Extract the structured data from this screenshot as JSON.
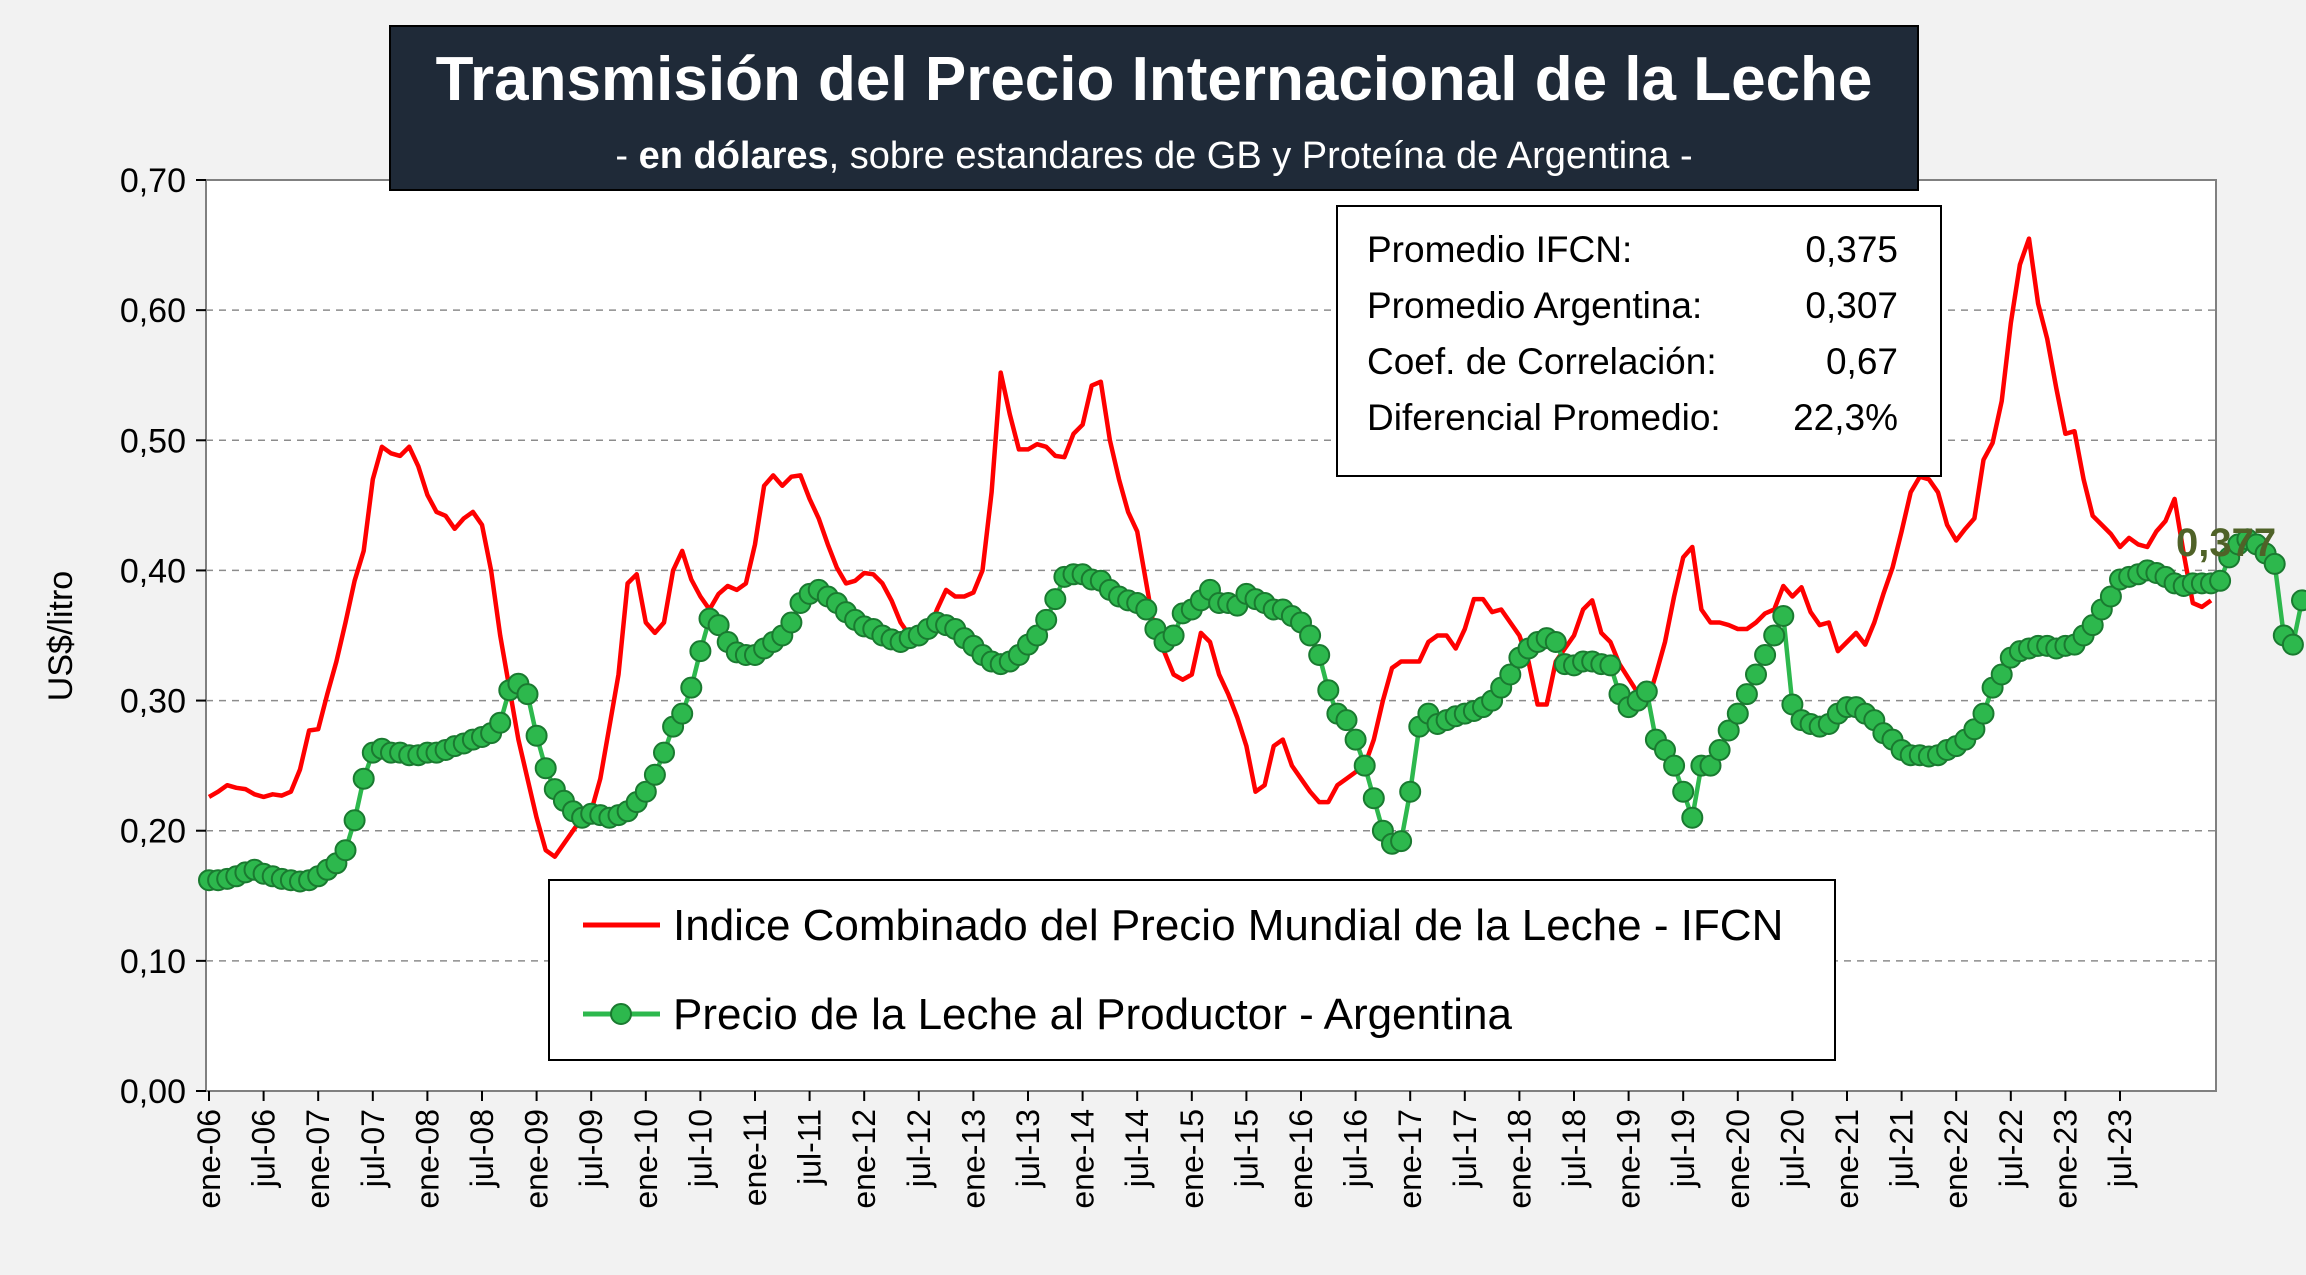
{
  "chart_data": {
    "type": "line",
    "title": "Transmisión del Precio Internacional de la Leche",
    "subtitle": {
      "prefix": "- ",
      "bold": "en dólares",
      "rest": ", sobre estandares de GB y Proteína de  Argentina -"
    },
    "ylabel": "US$/litro",
    "ylim": [
      0,
      0.7
    ],
    "y_ticks": [
      "0,00",
      "0,10",
      "0,20",
      "0,30",
      "0,40",
      "0,50",
      "0,60",
      "0,70"
    ],
    "x_ticks": [
      "ene-06",
      "jul-06",
      "ene-07",
      "jul-07",
      "ene-08",
      "jul-08",
      "ene-09",
      "jul-09",
      "ene-10",
      "jul-10",
      "ene-11",
      "jul-11",
      "ene-12",
      "jul-12",
      "ene-13",
      "jul-13",
      "ene-14",
      "jul-14",
      "ene-15",
      "jul-15",
      "ene-16",
      "jul-16",
      "ene-17",
      "jul-17",
      "ene-18",
      "jul-18",
      "ene-19",
      "jul-19",
      "ene-20",
      "jul-20",
      "ene-21",
      "jul-21",
      "ene-22",
      "jul-22",
      "ene-23",
      "jul-23"
    ],
    "grid": "horizontal dashed",
    "series": [
      {
        "name": "Indice Combinado del Precio Mundial de la Leche - IFCN",
        "color": "#ff0000",
        "markers": false,
        "values": [
          0.226,
          0.23,
          0.235,
          0.233,
          0.232,
          0.228,
          0.226,
          0.228,
          0.227,
          0.23,
          0.247,
          0.277,
          0.278,
          0.305,
          0.33,
          0.36,
          0.392,
          0.415,
          0.47,
          0.495,
          0.49,
          0.488,
          0.495,
          0.48,
          0.458,
          0.445,
          0.442,
          0.432,
          0.44,
          0.445,
          0.435,
          0.4,
          0.35,
          0.31,
          0.27,
          0.24,
          0.21,
          0.185,
          0.18,
          0.19,
          0.2,
          0.21,
          0.215,
          0.24,
          0.28,
          0.32,
          0.39,
          0.397,
          0.36,
          0.352,
          0.36,
          0.4,
          0.415,
          0.393,
          0.38,
          0.37,
          0.382,
          0.388,
          0.385,
          0.39,
          0.42,
          0.465,
          0.473,
          0.465,
          0.472,
          0.473,
          0.455,
          0.44,
          0.42,
          0.402,
          0.39,
          0.392,
          0.398,
          0.397,
          0.39,
          0.377,
          0.36,
          0.35,
          0.345,
          0.352,
          0.37,
          0.385,
          0.38,
          0.38,
          0.383,
          0.4,
          0.46,
          0.552,
          0.52,
          0.493,
          0.493,
          0.497,
          0.495,
          0.488,
          0.487,
          0.505,
          0.512,
          0.542,
          0.545,
          0.5,
          0.47,
          0.445,
          0.43,
          0.39,
          0.35,
          0.337,
          0.32,
          0.316,
          0.32,
          0.352,
          0.345,
          0.32,
          0.305,
          0.287,
          0.265,
          0.23,
          0.235,
          0.265,
          0.27,
          0.25,
          0.24,
          0.23,
          0.222,
          0.222,
          0.235,
          0.24,
          0.245,
          0.25,
          0.27,
          0.3,
          0.325,
          0.33,
          0.33,
          0.33,
          0.345,
          0.35,
          0.35,
          0.34,
          0.355,
          0.378,
          0.378,
          0.368,
          0.37,
          0.36,
          0.35,
          0.33,
          0.297,
          0.297,
          0.33,
          0.34,
          0.35,
          0.37,
          0.377,
          0.352,
          0.345,
          0.328,
          0.317,
          0.306,
          0.297,
          0.32,
          0.345,
          0.38,
          0.41,
          0.418,
          0.37,
          0.36,
          0.36,
          0.358,
          0.355,
          0.355,
          0.36,
          0.367,
          0.37,
          0.388,
          0.38,
          0.387,
          0.368,
          0.358,
          0.36,
          0.338,
          0.345,
          0.352,
          0.343,
          0.36,
          0.382,
          0.402,
          0.43,
          0.46,
          0.472,
          0.47,
          0.46,
          0.435,
          0.423,
          0.432,
          0.44,
          0.485,
          0.498,
          0.53,
          0.59,
          0.635,
          0.655,
          0.605,
          0.578,
          0.54,
          0.505,
          0.507,
          0.47,
          0.442,
          0.435,
          0.428,
          0.418,
          0.425,
          0.42,
          0.418,
          0.43,
          0.438,
          0.455,
          0.413,
          0.375,
          0.372,
          0.377
        ]
      },
      {
        "name": "Precio de la Leche al Productor - Argentina",
        "color": "#2db84d",
        "markers": true,
        "values": [
          0.162,
          0.162,
          0.163,
          0.165,
          0.168,
          0.17,
          0.167,
          0.165,
          0.163,
          0.162,
          0.161,
          0.162,
          0.165,
          0.17,
          0.175,
          0.185,
          0.208,
          0.24,
          0.26,
          0.263,
          0.26,
          0.26,
          0.258,
          0.258,
          0.26,
          0.26,
          0.262,
          0.265,
          0.267,
          0.27,
          0.272,
          0.275,
          0.283,
          0.308,
          0.313,
          0.305,
          0.273,
          0.248,
          0.232,
          0.223,
          0.215,
          0.21,
          0.213,
          0.212,
          0.21,
          0.212,
          0.215,
          0.222,
          0.23,
          0.243,
          0.26,
          0.28,
          0.29,
          0.31,
          0.338,
          0.363,
          0.358,
          0.345,
          0.337,
          0.335,
          0.335,
          0.34,
          0.345,
          0.35,
          0.36,
          0.375,
          0.382,
          0.385,
          0.38,
          0.375,
          0.368,
          0.362,
          0.357,
          0.355,
          0.35,
          0.347,
          0.345,
          0.348,
          0.35,
          0.355,
          0.36,
          0.358,
          0.355,
          0.348,
          0.342,
          0.335,
          0.33,
          0.328,
          0.33,
          0.335,
          0.343,
          0.35,
          0.362,
          0.378,
          0.395,
          0.397,
          0.397,
          0.393,
          0.392,
          0.385,
          0.38,
          0.377,
          0.375,
          0.37,
          0.355,
          0.345,
          0.35,
          0.367,
          0.37,
          0.377,
          0.385,
          0.375,
          0.375,
          0.373,
          0.382,
          0.378,
          0.375,
          0.37,
          0.37,
          0.365,
          0.36,
          0.35,
          0.335,
          0.308,
          0.29,
          0.285,
          0.27,
          0.25,
          0.225,
          0.2,
          0.19,
          0.192,
          0.23,
          0.28,
          0.29,
          0.282,
          0.285,
          0.288,
          0.29,
          0.292,
          0.295,
          0.3,
          0.31,
          0.32,
          0.333,
          0.34,
          0.345,
          0.348,
          0.345,
          0.328,
          0.327,
          0.33,
          0.33,
          0.328,
          0.327,
          0.305,
          0.295,
          0.3,
          0.307,
          0.27,
          0.262,
          0.25,
          0.23,
          0.21,
          0.25,
          0.25,
          0.262,
          0.277,
          0.29,
          0.305,
          0.32,
          0.335,
          0.35,
          0.365,
          0.297,
          0.285,
          0.282,
          0.28,
          0.282,
          0.29,
          0.295,
          0.295,
          0.29,
          0.285,
          0.275,
          0.27,
          0.262,
          0.258,
          0.258,
          0.257,
          0.258,
          0.262,
          0.265,
          0.27,
          0.278,
          0.29,
          0.31,
          0.32,
          0.333,
          0.338,
          0.34,
          0.342,
          0.342,
          0.34,
          0.342,
          0.343,
          0.35,
          0.358,
          0.37,
          0.38,
          0.393,
          0.395,
          0.397,
          0.4,
          0.398,
          0.395,
          0.39,
          0.388,
          0.39,
          0.39,
          0.39,
          0.392,
          0.41,
          0.42,
          0.424,
          0.42,
          0.413,
          0.405,
          0.35,
          0.343,
          0.377
        ]
      }
    ],
    "stats": [
      {
        "label": "Promedio IFCN:",
        "value": "0,375"
      },
      {
        "label": "Promedio Argentina:",
        "value": "0,307"
      },
      {
        "label": "Coef. de Correlación:",
        "value": "0,67"
      },
      {
        "label": "Diferencial Promedio:",
        "value": "22,3%"
      }
    ],
    "end_label": "0,377",
    "legend_position": "bottom-center inside plot"
  }
}
